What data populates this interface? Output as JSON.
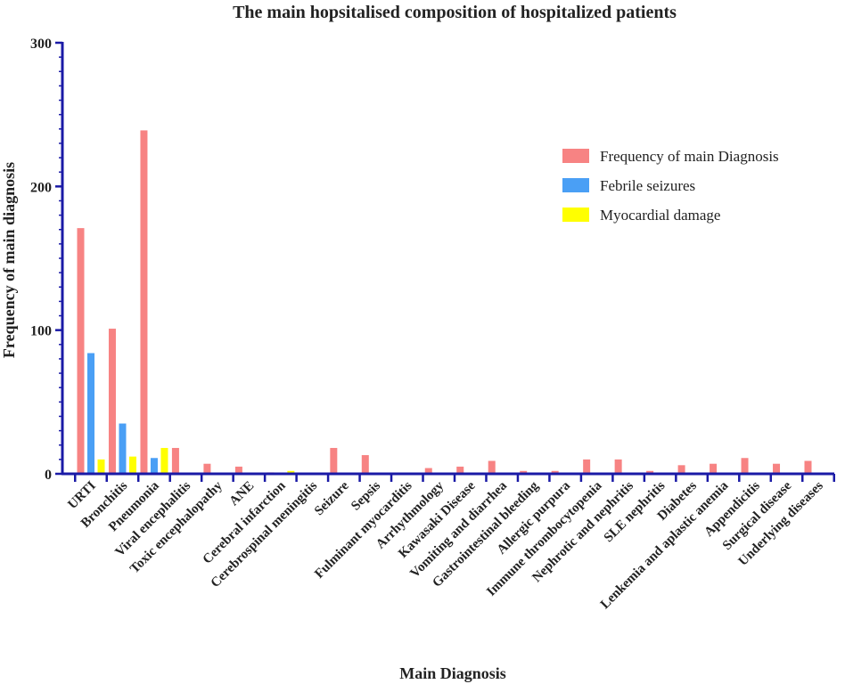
{
  "chart_data": {
    "type": "bar",
    "title": "The main hopsitalised composition of hospitalized patients",
    "xlabel": "Main Diagnosis",
    "ylabel": "Frequency of main diagnosis",
    "ylim": [
      0,
      300
    ],
    "yticks": [
      0,
      100,
      200,
      300
    ],
    "legend_position": "top-right",
    "categories": [
      "URTI",
      "Bronchitis",
      "Pneumonia",
      "Viral encephalitis",
      "Toxic encephalopathy",
      "ANE",
      "Cerebral infarction",
      "Cerebrospinal meningitis",
      "Seizure",
      "Sepsis",
      "Fulminant myocarditis",
      "Arrhythmology",
      "Kawasaki Disease",
      "Vomiting and diarrhea",
      "Gastrointestinal bleeding",
      "Allergic purpura",
      "Immune thrombocytopenia",
      "Nephrotic  and nephritis",
      "SLE nephritis",
      "Diabetes",
      "Lenkemia and aplastic anemia",
      "Appendicitis",
      "Surgical disease",
      "Underlying diseases"
    ],
    "series": [
      {
        "name": "Frequency of main Diagnosis",
        "color": "#f78383",
        "values": [
          171,
          101,
          239,
          18,
          7,
          5,
          1,
          0,
          18,
          13,
          0,
          4,
          5,
          9,
          2,
          2,
          10,
          10,
          2,
          6,
          7,
          11,
          7,
          9
        ]
      },
      {
        "name": "Febrile seizures",
        "color": "#4a9ff5",
        "values": [
          84,
          35,
          11,
          0,
          0,
          0,
          0,
          0,
          0,
          0,
          0,
          0,
          0,
          0,
          0,
          0,
          0,
          0,
          0,
          0,
          0,
          0,
          0,
          0
        ]
      },
      {
        "name": "Myocardial damage",
        "color": "#ffff00",
        "values": [
          10,
          12,
          18,
          0,
          0,
          0,
          2,
          0,
          0,
          0,
          0,
          0,
          0,
          0,
          0,
          0,
          0,
          0,
          0,
          0,
          0,
          0,
          0,
          0
        ]
      }
    ],
    "axis_color": "#1a1aa6"
  }
}
